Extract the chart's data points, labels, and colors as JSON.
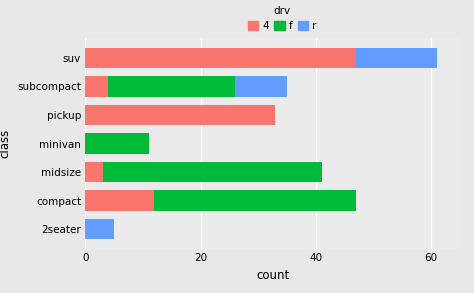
{
  "categories": [
    "2seater",
    "compact",
    "midsize",
    "minivan",
    "pickup",
    "subcompact",
    "suv"
  ],
  "drv_4": [
    0,
    12,
    3,
    0,
    33,
    4,
    47
  ],
  "drv_f": [
    0,
    35,
    38,
    11,
    0,
    22,
    0
  ],
  "drv_r": [
    5,
    0,
    0,
    0,
    0,
    9,
    14
  ],
  "color_4": "#F8766D",
  "color_f": "#00BA38",
  "color_r": "#619CFF",
  "bg_color": "#EBEBEB",
  "panel_bg": "#EBEBEB",
  "fig_bg": "#E8E8E8",
  "grid_color": "#FFFFFF",
  "xlabel": "count",
  "ylabel": "class",
  "legend_title": "drv",
  "legend_labels": [
    "4",
    "f",
    "r"
  ],
  "xlim": [
    0,
    65
  ],
  "xticks": [
    0,
    20,
    40,
    60
  ],
  "bar_height": 0.72
}
